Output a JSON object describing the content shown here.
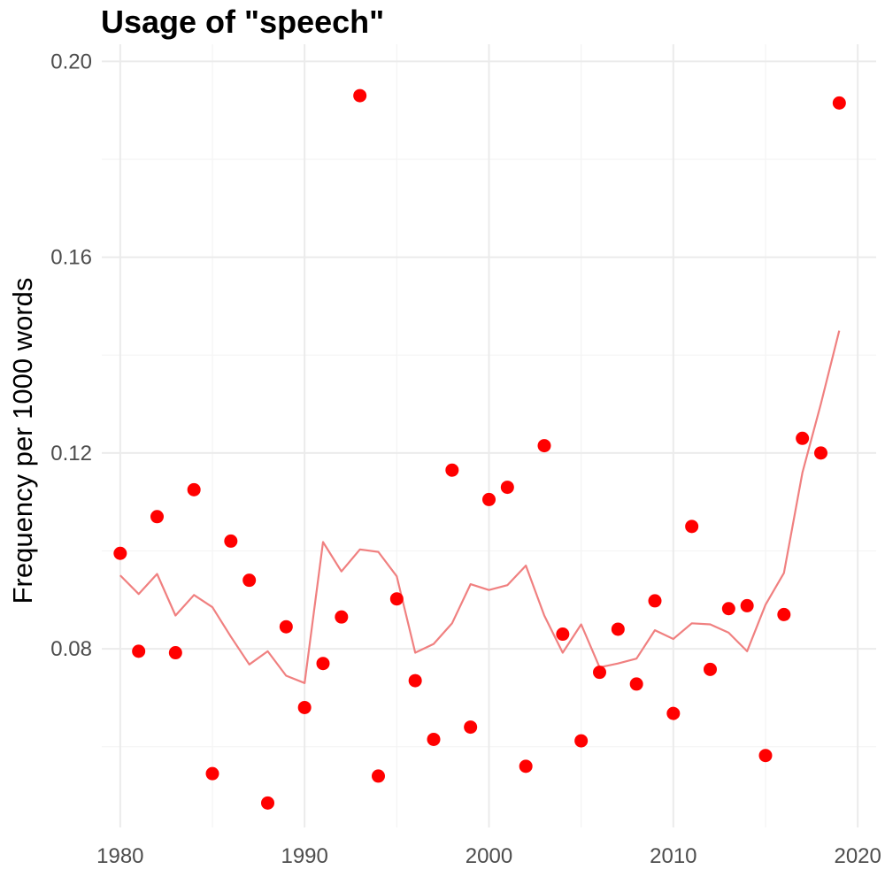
{
  "chart_data": {
    "type": "scatter",
    "title": "Usage of \"speech\"",
    "xlabel": "",
    "ylabel": "Frequency per 1000 words",
    "xlim": [
      1979,
      2021
    ],
    "ylim": [
      0.0435,
      0.2035
    ],
    "x_ticks": [
      1980,
      1990,
      2000,
      2010,
      2020
    ],
    "x_tick_labels": [
      "1980",
      "1990",
      "2000",
      "2010",
      "2020"
    ],
    "y_ticks": [
      0.08,
      0.12,
      0.16,
      0.2
    ],
    "y_tick_labels": [
      "0.08",
      "0.12",
      "0.16",
      "0.20"
    ],
    "grid": true,
    "point_color": "#ff0000",
    "line_color": "#f08080",
    "series": [
      {
        "kind": "points",
        "x": [
          1980,
          1981,
          1982,
          1983,
          1984,
          1985,
          1986,
          1987,
          1988,
          1989,
          1990,
          1991,
          1992,
          1993,
          1994,
          1995,
          1996,
          1997,
          1998,
          1999,
          2000,
          2001,
          2002,
          2003,
          2004,
          2005,
          2006,
          2007,
          2008,
          2009,
          2010,
          2011,
          2012,
          2013,
          2014,
          2015,
          2016,
          2017,
          2018,
          2019
        ],
        "values": [
          0.0995,
          0.0795,
          0.107,
          0.0792,
          0.1125,
          0.0545,
          0.102,
          0.094,
          0.0485,
          0.0845,
          0.068,
          0.077,
          0.0865,
          0.193,
          0.054,
          0.0902,
          0.0735,
          0.0615,
          0.1165,
          0.064,
          0.1105,
          0.113,
          0.056,
          0.1215,
          0.083,
          0.0612,
          0.0752,
          0.084,
          0.0728,
          0.0898,
          0.0668,
          0.105,
          0.0758,
          0.0882,
          0.0888,
          0.0582,
          0.087,
          0.123,
          0.12,
          0.1915
        ]
      },
      {
        "kind": "line",
        "x": [
          1980,
          1981,
          1982,
          1983,
          1984,
          1985,
          1986,
          1987,
          1988,
          1989,
          1990,
          1991,
          1992,
          1993,
          1994,
          1995,
          1996,
          1997,
          1998,
          1999,
          2000,
          2001,
          2002,
          2003,
          2004,
          2005,
          2006,
          2007,
          2008,
          2009,
          2010,
          2011,
          2012,
          2013,
          2014,
          2015,
          2016,
          2017,
          2018,
          2019
        ],
        "values": [
          0.095,
          0.0912,
          0.0953,
          0.0868,
          0.091,
          0.0885,
          0.0825,
          0.0768,
          0.0795,
          0.0745,
          0.073,
          0.1018,
          0.0958,
          0.1003,
          0.0998,
          0.0948,
          0.0792,
          0.081,
          0.0852,
          0.0932,
          0.092,
          0.093,
          0.097,
          0.0868,
          0.0792,
          0.085,
          0.0762,
          0.077,
          0.078,
          0.0838,
          0.082,
          0.0852,
          0.085,
          0.0833,
          0.0795,
          0.089,
          0.0955,
          0.116,
          0.13,
          0.145
        ]
      }
    ]
  }
}
